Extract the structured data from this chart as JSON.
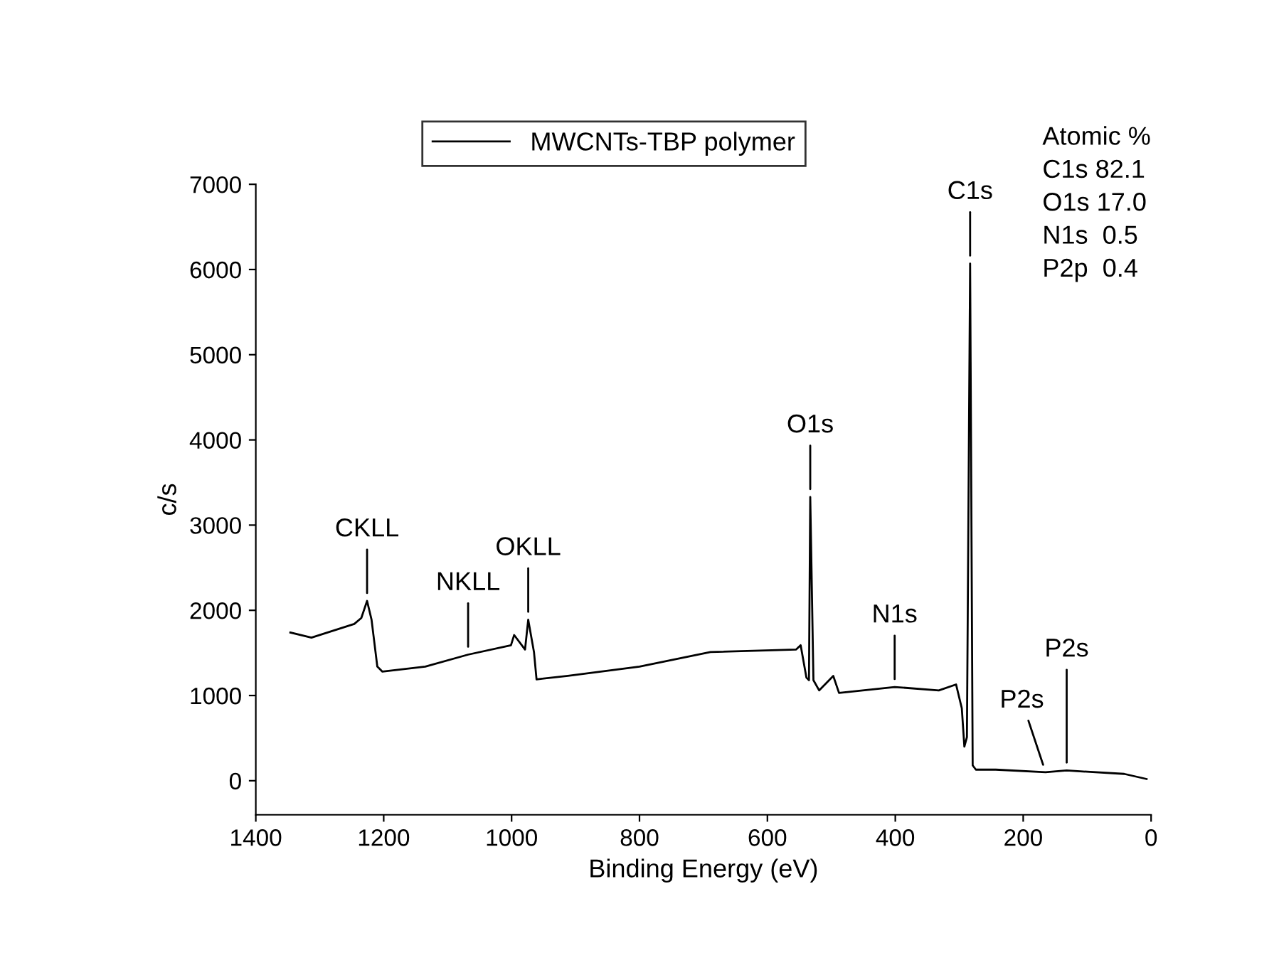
{
  "chart_data": {
    "type": "line",
    "xlabel": "Binding Energy (eV)",
    "ylabel": "c/s",
    "xlim": [
      1400,
      0
    ],
    "xticks": [
      1400,
      1200,
      1000,
      800,
      600,
      400,
      200,
      0
    ],
    "ylim": [
      -400,
      7000
    ],
    "yticks": [
      0,
      1000,
      2000,
      3000,
      4000,
      5000,
      6000,
      7000
    ],
    "legend": "top",
    "grid": false,
    "series": [
      {
        "name": "MWCNTs-TBP polymer",
        "color": "#000000",
        "x": [
          1346,
          1313,
          1246,
          1235,
          1226,
          1219,
          1210,
          1202,
          1135,
          1068,
          1001,
          996,
          979,
          974,
          965,
          961,
          912,
          800,
          689,
          555,
          548,
          539,
          535,
          533,
          528,
          519,
          497,
          488,
          401,
          332,
          305,
          296,
          292,
          288,
          283,
          279,
          274,
          243,
          165,
          132,
          42,
          7
        ],
        "values": [
          1740,
          1680,
          1840,
          1910,
          2110,
          1890,
          1340,
          1280,
          1340,
          1480,
          1590,
          1710,
          1540,
          1890,
          1510,
          1190,
          1230,
          1340,
          1510,
          1540,
          1590,
          1210,
          1180,
          3330,
          1180,
          1060,
          1230,
          1030,
          1100,
          1060,
          1130,
          850,
          400,
          510,
          6070,
          180,
          130,
          130,
          100,
          120,
          80,
          20
        ]
      }
    ],
    "annotations": [
      {
        "text": "CKLL",
        "x": 1226,
        "y": 2110
      },
      {
        "text": "NKLL",
        "x": 1068,
        "y": 1480
      },
      {
        "text": "OKLL",
        "x": 974,
        "y": 1890
      },
      {
        "text": "O1s",
        "x": 533,
        "y": 3330
      },
      {
        "text": "N1s",
        "x": 401,
        "y": 1100
      },
      {
        "text": "C1s",
        "x": 283,
        "y": 6070
      },
      {
        "text": "P2s",
        "x": 165,
        "y": 100
      },
      {
        "text": "P2s",
        "x": 132,
        "y": 120
      },
      "Atomic %",
      "C1s 82.1",
      "O1s 17.0",
      "N1s  0.5",
      "P2p  0.4"
    ]
  }
}
